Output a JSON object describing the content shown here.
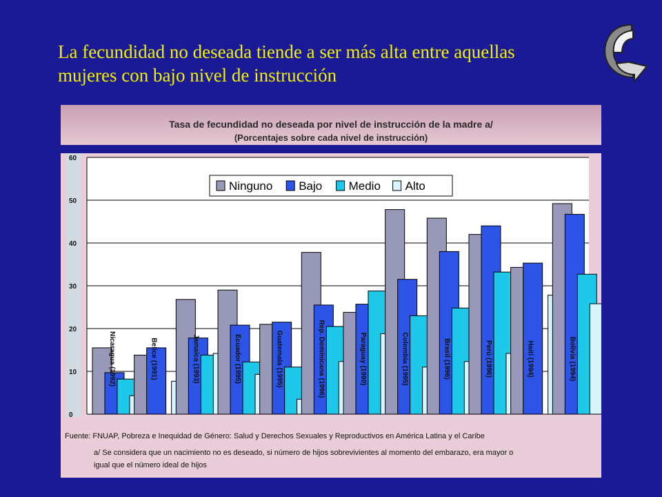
{
  "slide": {
    "title_line1": "La fecundidad no deseada  tiende a ser más alta entre aquellas",
    "title_line2": "mujeres con bajo nivel de instrucción",
    "nav_icon": "curved-back-arrow-icon"
  },
  "chart_header": {
    "title": "Tasa de fecundidad no deseada por nivel de instrucción de la madre a/",
    "subtitle": "(Porcentajes sobre cada nivel de instrucción)"
  },
  "footnotes": {
    "source": "Fuente: FNUAP, Pobreza e Inequidad de Género: Salud y Derechos Sexuales y Reproductivos en América Latina y el Caribe",
    "note_line1": "a/ Se considera que un nacimiento no es deseado, si número de hijos sobrevivientes al momento del embarazo, era mayor o",
    "note_line2": "igual que el número ideal de hijos"
  },
  "chart_data": {
    "type": "bar",
    "title": "Tasa de fecundidad no deseada por nivel de instrucción de la madre a/",
    "subtitle": "(Porcentajes sobre cada nivel de instrucción)",
    "ylim": [
      0,
      60
    ],
    "yticks": [
      0,
      10,
      20,
      30,
      40,
      50,
      60
    ],
    "legend_position": "top-center",
    "gridlines": true,
    "categories": [
      "Nicaragua (1992)",
      "Belice (1991)",
      "Jamaica (1993)",
      "Ecuador (1995)",
      "Guatemala (1995)",
      "Rep. Dominicana (1996)",
      "Paraguay (1990)",
      "Colombia (1995)",
      "Brasil (1996)",
      "Perú (1996)",
      "Haití (1994)",
      "Bolivia (1994)"
    ],
    "series": [
      {
        "name": "Ninguno",
        "color": "#9898b8",
        "values": [
          15.5,
          13.8,
          26.8,
          29.0,
          21.0,
          37.8,
          23.8,
          47.8,
          45.8,
          42.0,
          34.3,
          49.2
        ]
      },
      {
        "name": "Bajo",
        "color": "#2c54e6",
        "values": [
          9.7,
          15.5,
          17.8,
          20.8,
          21.5,
          25.5,
          25.7,
          31.5,
          38.0,
          44.0,
          35.3,
          46.7
        ]
      },
      {
        "name": "Medio",
        "color": "#1ec8e8",
        "values": [
          8.2,
          null,
          13.8,
          12.2,
          11.0,
          20.5,
          28.8,
          23.0,
          24.8,
          33.2,
          null,
          32.7
        ]
      },
      {
        "name": "Alto",
        "color": "#d6f6ff",
        "values": [
          4.3,
          7.7,
          14.2,
          9.3,
          3.5,
          12.3,
          18.8,
          11.0,
          12.3,
          14.2,
          27.8,
          25.8
        ]
      }
    ]
  }
}
